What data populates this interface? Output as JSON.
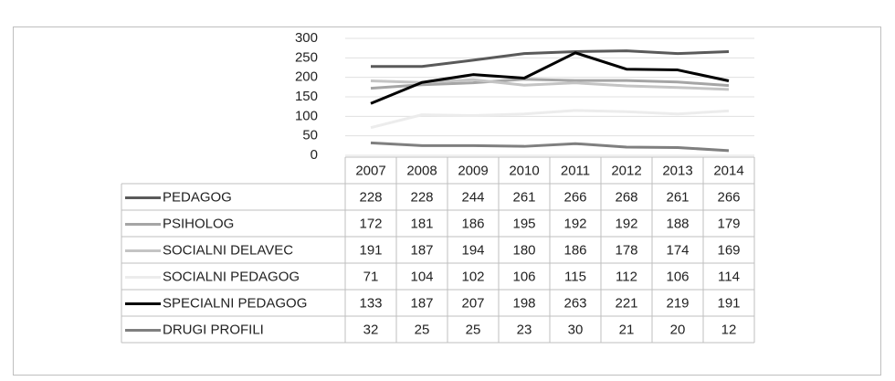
{
  "chart_data": {
    "type": "line",
    "categories": [
      "2007",
      "2008",
      "2009",
      "2010",
      "2011",
      "2012",
      "2013",
      "2014"
    ],
    "series": [
      {
        "name": "PEDAGOG",
        "color": "#5a5a5a",
        "values": [
          228,
          228,
          244,
          261,
          266,
          268,
          261,
          266
        ]
      },
      {
        "name": "PSIHOLOG",
        "color": "#a5a5a5",
        "values": [
          172,
          181,
          186,
          195,
          192,
          192,
          188,
          179
        ]
      },
      {
        "name": "SOCIALNI DELAVEC",
        "color": "#c4c4c4",
        "values": [
          191,
          187,
          194,
          180,
          186,
          178,
          174,
          169
        ]
      },
      {
        "name": "SOCIALNI PEDAGOG",
        "color": "#ececec",
        "values": [
          71,
          104,
          102,
          106,
          115,
          112,
          106,
          114
        ]
      },
      {
        "name": "SPECIALNI PEDAGOG",
        "color": "#000000",
        "values": [
          133,
          187,
          207,
          198,
          263,
          221,
          219,
          191
        ]
      },
      {
        "name": "DRUGI PROFILI",
        "color": "#7f7f7f",
        "values": [
          32,
          25,
          25,
          23,
          30,
          21,
          20,
          12
        ]
      }
    ],
    "ylim": [
      0,
      300
    ],
    "yticks": [
      0,
      50,
      100,
      150,
      200,
      250,
      300
    ],
    "grid": true
  }
}
